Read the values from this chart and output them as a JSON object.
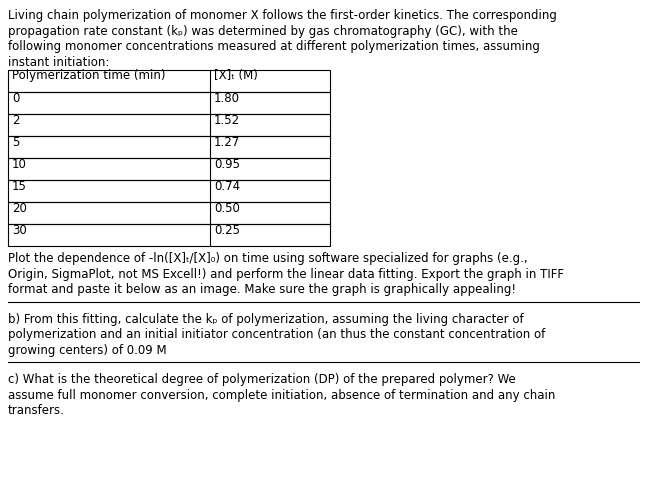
{
  "intro_lines": [
    "Living chain polymerization of monomer X follows the first-order kinetics. The corresponding",
    "propagation rate constant (kₚ) was determined by gas chromatography (GC), with the",
    "following monomer concentrations measured at different polymerization times, assuming",
    "instant initiation:"
  ],
  "table_header": [
    "Polymerization time (min)",
    "[X]ₜ (M)"
  ],
  "table_rows": [
    [
      "0",
      "1.80"
    ],
    [
      "2",
      "1.52"
    ],
    [
      "5",
      "1.27"
    ],
    [
      "10",
      "0.95"
    ],
    [
      "15",
      "0.74"
    ],
    [
      "20",
      "0.50"
    ],
    [
      "30",
      "0.25"
    ]
  ],
  "part_a_lines": [
    "Plot the dependence of -ln([X]ₜ/[X]₀) on time using software specialized for graphs (e.g.,",
    "Origin, SigmaPlot, not MS Excell!) and perform the linear data fitting. Export the graph in TIFF",
    "format and paste it below as an image. Make sure the graph is graphically appealing!"
  ],
  "part_b_lines": [
    "b) From this fitting, calculate the kₚ of polymerization, assuming the living character of",
    "polymerization and an initial initiator concentration (an thus the constant concentration of",
    "growing centers) of 0.09 M"
  ],
  "part_c_lines": [
    "c) What is the theoretical degree of polymerization (DP) of the prepared polymer? We",
    "assume full monomer conversion, complete initiation, absence of termination and any chain",
    "transfers."
  ],
  "font_size": 8.5,
  "bg_color": "#ffffff",
  "text_color": "#000000",
  "line_color": "#000000"
}
